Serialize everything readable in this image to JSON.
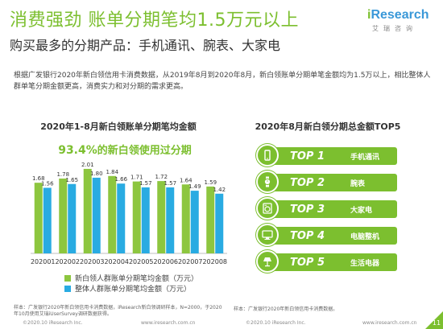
{
  "header": {
    "title": "消费强劲 账单分期笔均1.5万元以上",
    "subtitle": "购买最多的分期产品：手机通讯、腕表、大家电",
    "logo_main_i": "i",
    "logo_main_rest": "Research",
    "logo_sub": "艾瑞咨询"
  },
  "description": "根据广发银行2020年新白领信用卡消费数据，从2019年8月到2020年8月，新白领账单分期单笔金额均为1.5万以上，相比整体人群单笔分期金额更高，消费实力和对分期的需求更高。",
  "left_chart": {
    "title": "2020年1-8月新白领账单分期笔均金额",
    "highlight_pct": "93.4%",
    "highlight_rest": "的新白领使用过分期"
  },
  "chart_data": {
    "type": "bar",
    "title": "2020年1-8月新白领账单分期笔均金额",
    "categories": [
      "202001",
      "202002",
      "202003",
      "202004",
      "202005",
      "202006",
      "202007",
      "202008"
    ],
    "series": [
      {
        "name": "新白领人群账单分期笔均金额（万元）",
        "values": [
          1.68,
          1.78,
          2.01,
          1.84,
          1.71,
          1.72,
          1.64,
          1.59
        ],
        "color": "#8dc63f"
      },
      {
        "name": "整体人群账单分期笔均金额（万元）",
        "values": [
          1.56,
          1.65,
          1.8,
          1.66,
          1.57,
          1.57,
          1.49,
          1.42
        ],
        "color": "#29abe2"
      }
    ],
    "ylim": [
      0,
      2.2
    ],
    "grid": false,
    "legend": "bottom"
  },
  "right_panel": {
    "title": "2020年8月新白领分期总金额TOP5",
    "items": [
      {
        "rank": "TOP 1",
        "name": "手机通讯",
        "icon": "phone-icon"
      },
      {
        "rank": "TOP 2",
        "name": "腕表",
        "icon": "watch-icon"
      },
      {
        "rank": "TOP 3",
        "name": "大家电",
        "icon": "washing-machine-icon"
      },
      {
        "rank": "TOP 4",
        "name": "电脑整机",
        "icon": "computer-icon"
      },
      {
        "rank": "TOP 5",
        "name": "生活电器",
        "icon": "lamp-icon"
      }
    ],
    "accent": "#7cbf2f"
  },
  "footer": {
    "note_left": "样本：广发银行2020年新白领信用卡消费数据，iResearch新白领调研样本，N=2000，于2020年10月使用艾瑞iUserSurvey调研数据获得。",
    "note_right": "样本：广发银行2020年新白领信用卡消费数据。",
    "copyright_left": "©2020.10 iResearch Inc.",
    "copyright_mid": "www.iresearch.com.cn",
    "copyright_right": "©2020.10 iResearch Inc.",
    "copyright_mid2": "www.iresearch.com.cn",
    "page_number": "11"
  }
}
